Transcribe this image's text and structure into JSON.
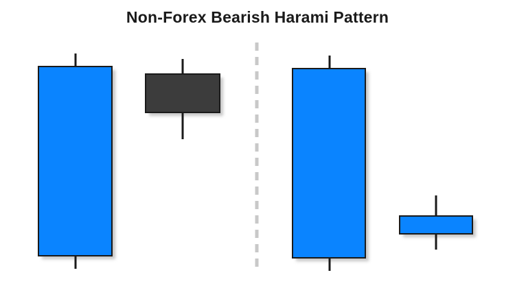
{
  "title": "Non-Forex Bearish Harami Pattern",
  "colors": {
    "bullish_body": "#0a84ff",
    "bearish_body": "#3c3c3c",
    "outline": "#1a1a1a",
    "wick": "#1a1a1a",
    "shadow": "#c8c8c8",
    "divider": "#c8c8c8"
  },
  "candles": [
    {
      "name": "left-pattern-bullish-candle",
      "type": "bullish"
    },
    {
      "name": "left-pattern-bearish-candle",
      "type": "bearish"
    },
    {
      "name": "right-pattern-bullish-candle",
      "type": "bullish"
    },
    {
      "name": "right-pattern-small-bullish-candle",
      "type": "bullish"
    }
  ]
}
